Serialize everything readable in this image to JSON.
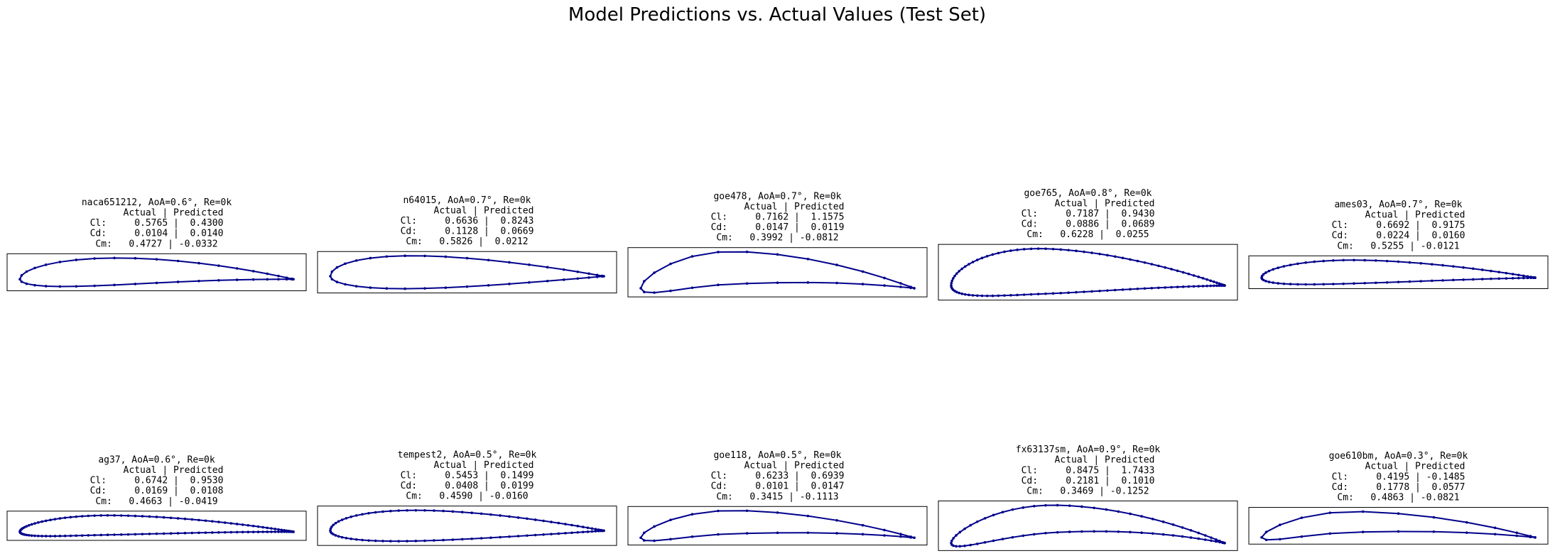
{
  "figure": {
    "title": "Model Predictions vs. Actual Values (Test Set)",
    "line_color": "#00008b"
  },
  "chart_data": [
    {
      "type": "line",
      "name": "naca651212",
      "title": [
        "naca651212, AoA=0.6°, Re=0k",
        "      Actual | Predicted",
        "Cl:     0.5765 |  0.4300",
        "Cd:     0.0104 |  0.0140",
        "Cm:   0.4727 | -0.0332"
      ],
      "actual": {
        "Cl": 0.5765,
        "Cd": 0.0104,
        "Cm": 0.4727
      },
      "predicted": {
        "Cl": 0.43,
        "Cd": 0.014,
        "Cm": -0.0332
      },
      "shape": {
        "t": 0.12,
        "m": 0.02,
        "p": 0.5,
        "lam": 0.55,
        "n": 20
      }
    },
    {
      "type": "line",
      "name": "n64015",
      "title": [
        "n64015, AoA=0.7°, Re=0k",
        "      Actual | Predicted",
        "Cl:     0.6636 |  0.8243",
        "Cd:     0.1128 |  0.0669",
        "Cm:   0.5826 |  0.0212"
      ],
      "actual": {
        "Cl": 0.6636,
        "Cd": 0.1128,
        "Cm": 0.5826
      },
      "predicted": {
        "Cl": 0.8243,
        "Cd": 0.0669,
        "Cm": 0.0212
      },
      "shape": {
        "t": 0.15,
        "m": 0.0,
        "p": 0.5,
        "lam": 0.5,
        "n": 20
      }
    },
    {
      "type": "line",
      "name": "goe478",
      "title": [
        "goe478, AoA=0.7°, Re=0k",
        "      Actual | Predicted",
        "Cl:     0.7162 |  1.1575",
        "Cd:     0.0147 |  0.0119",
        "Cm:   0.3992 | -0.0812"
      ],
      "actual": {
        "Cl": 0.7162,
        "Cd": 0.0147,
        "Cm": 0.3992
      },
      "predicted": {
        "Cl": 1.1575,
        "Cd": 0.0119,
        "Cm": -0.0812
      },
      "shape": {
        "t": 0.13,
        "m": 0.07,
        "p": 0.35,
        "lam": 0.7,
        "n": 14
      }
    },
    {
      "type": "line",
      "name": "goe765",
      "title": [
        "goe765, AoA=0.8°, Re=0k",
        "      Actual | Predicted",
        "Cl:     0.7187 |  0.9430",
        "Cd:     0.0886 |  0.0689",
        "Cm:   0.6228 |  0.0255"
      ],
      "actual": {
        "Cl": 0.7187,
        "Cd": 0.0886,
        "Cm": 0.6228
      },
      "predicted": {
        "Cl": 0.943,
        "Cd": 0.0689,
        "Cm": 0.0255
      },
      "shape": {
        "t": 0.2,
        "m": 0.035,
        "p": 0.35,
        "lam": 0.55,
        "n": 55
      }
    },
    {
      "type": "line",
      "name": "ames03",
      "title": [
        "ames03, AoA=0.7°, Re=0k",
        "      Actual | Predicted",
        "Cl:     0.6692 |  0.9175",
        "Cd:     0.0224 |  0.0160",
        "Cm:   0.5255 | -0.0121"
      ],
      "actual": {
        "Cl": 0.6692,
        "Cd": 0.0224,
        "Cm": 0.5255
      },
      "predicted": {
        "Cl": 0.9175,
        "Cd": 0.016,
        "Cm": -0.0121
      },
      "shape": {
        "t": 0.1,
        "m": 0.015,
        "p": 0.4,
        "lam": 0.6,
        "n": 38
      }
    },
    {
      "type": "line",
      "name": "ag37",
      "title": [
        "ag37, AoA=0.6°, Re=0k",
        "      Actual | Predicted",
        "Cl:     0.6742 |  0.9530",
        "Cd:     0.0169 |  0.0108",
        "Cm:   0.4663 | -0.0419"
      ],
      "actual": {
        "Cl": 0.6742,
        "Cd": 0.0169,
        "Cm": 0.4663
      },
      "predicted": {
        "Cl": 0.953,
        "Cd": 0.0108,
        "Cm": -0.0419
      },
      "shape": {
        "t": 0.08,
        "m": 0.02,
        "p": 0.35,
        "lam": 0.65,
        "n": 60
      }
    },
    {
      "type": "line",
      "name": "tempest2",
      "title": [
        "tempest2, AoA=0.5°, Re=0k",
        "      Actual | Predicted",
        "Cl:     0.5453 |  0.1499",
        "Cd:     0.0408 |  0.0199",
        "Cm:   0.4590 | -0.0160"
      ],
      "actual": {
        "Cl": 0.5453,
        "Cd": 0.0408,
        "Cm": 0.459
      },
      "predicted": {
        "Cl": 0.1499,
        "Cd": 0.0199,
        "Cm": -0.016
      },
      "shape": {
        "t": 0.14,
        "m": 0.005,
        "p": 0.45,
        "lam": 0.5,
        "n": 45
      }
    },
    {
      "type": "line",
      "name": "goe118",
      "title": [
        "goe118, AoA=0.5°, Re=0k",
        "      Actual | Predicted",
        "Cl:     0.6233 |  0.6939",
        "Cd:     0.0101 |  0.0147",
        "Cm:   0.3415 | -0.1113"
      ],
      "actual": {
        "Cl": 0.6233,
        "Cd": 0.0101,
        "Cm": 0.3415
      },
      "predicted": {
        "Cl": 0.6939,
        "Cd": 0.0147,
        "Cm": -0.1113
      },
      "shape": {
        "t": 0.09,
        "m": 0.055,
        "p": 0.35,
        "lam": 0.75,
        "n": 14
      }
    },
    {
      "type": "line",
      "name": "fx63137sm",
      "title": [
        "fx63137sm, AoA=0.9°, Re=0k",
        "      Actual | Predicted",
        "Cl:     0.8475 |  1.7433",
        "Cd:     0.2181 |  0.1010",
        "Cm:   0.3469 | -0.1252"
      ],
      "actual": {
        "Cl": 0.8475,
        "Cd": 0.2181,
        "Cm": 0.3469
      },
      "predicted": {
        "Cl": 1.7433,
        "Cd": 0.101,
        "Cm": -0.1252
      },
      "shape": {
        "t": 0.11,
        "m": 0.085,
        "p": 0.4,
        "lam": 0.72,
        "n": 35
      }
    },
    {
      "type": "line",
      "name": "goe610bm",
      "title": [
        "goe610bm, AoA=0.3°, Re=0k",
        "      Actual | Predicted",
        "Cl:     0.4195 | -0.1485",
        "Cd:     0.1778 |  0.0577",
        "Cm:   0.4863 | -0.0821"
      ],
      "actual": {
        "Cl": 0.4195,
        "Cd": 0.1778,
        "Cm": 0.4863
      },
      "predicted": {
        "Cl": -0.1485,
        "Cd": 0.0577,
        "Cm": -0.0821
      },
      "shape": {
        "t": 0.08,
        "m": 0.055,
        "p": 0.35,
        "lam": 0.75,
        "n": 12
      }
    }
  ]
}
